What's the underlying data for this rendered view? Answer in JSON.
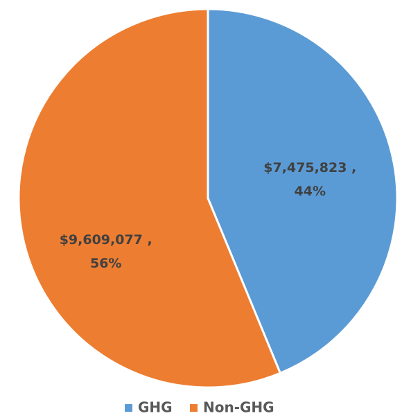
{
  "chart_data": {
    "type": "pie",
    "categories": [
      "GHG",
      "Non-GHG"
    ],
    "values": [
      7475823,
      9609077
    ],
    "value_labels": [
      "$7,475,823 ,",
      "$9,609,077 ,"
    ],
    "percents": [
      44,
      56
    ],
    "percent_labels": [
      "44%",
      "56%"
    ],
    "colors": [
      "#5b9bd5",
      "#ed7d31"
    ],
    "legend": "bottom"
  }
}
